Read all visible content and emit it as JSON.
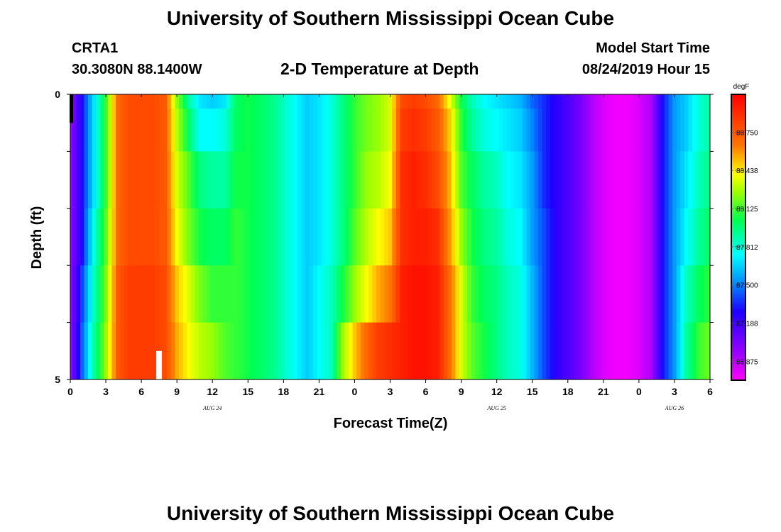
{
  "page": {
    "title_top": "University of Southern Mississippi Ocean Cube",
    "title_bottom": "University of Southern Mississippi Ocean Cube",
    "station_id": "CRTA1",
    "station_coords": "30.3080N 88.1400W",
    "model_label": "Model Start Time",
    "model_time": "08/24/2019 Hour 15"
  },
  "chart_data": {
    "type": "heatmap",
    "title": "2-D Temperature at Depth",
    "xlabel": "Forecast Time(Z)",
    "ylabel": "Depth (ft)",
    "units": "degF",
    "x_range_hours": [
      0,
      54
    ],
    "y_range_ft": [
      0,
      5
    ],
    "x_tick_labels": [
      "0",
      "3",
      "6",
      "9",
      "12",
      "15",
      "18",
      "21",
      "0",
      "3",
      "6",
      "9",
      "12",
      "15",
      "18",
      "21",
      "0",
      "3",
      "6"
    ],
    "y_tick_labels": [
      "0",
      "5"
    ],
    "date_labels": [
      {
        "text": "AUG 24",
        "hour": 12
      },
      {
        "text": "AUG 25",
        "hour": 36
      },
      {
        "text": "AUG 26",
        "hour": 51
      }
    ],
    "colorbar": {
      "min": 86.72,
      "max": 89.06,
      "tick_labels": [
        "88.750",
        "88.438",
        "88.125",
        "87.812",
        "87.500",
        "87.188",
        "86.875"
      ],
      "tick_values": [
        88.75,
        88.438,
        88.125,
        87.812,
        87.5,
        87.188,
        86.875
      ]
    },
    "depth_layers_ft": [
      0,
      0.5,
      1.5,
      2.5,
      3.5,
      4.5
    ],
    "temperature_degF_by_hour": [
      [
        86.95,
        86.95,
        86.95,
        86.95,
        86.95,
        86.95
      ],
      [
        87.3,
        87.3,
        87.3,
        87.3,
        87.4,
        87.45
      ],
      [
        87.7,
        87.7,
        87.7,
        87.8,
        87.85,
        87.9
      ],
      [
        88.1,
        88.1,
        88.1,
        88.15,
        88.2,
        88.25
      ],
      [
        88.7,
        88.7,
        88.7,
        88.7,
        88.75,
        88.75
      ],
      [
        88.8,
        88.8,
        88.8,
        88.8,
        88.85,
        88.85
      ],
      [
        88.8,
        88.8,
        88.8,
        88.8,
        88.85,
        88.85
      ],
      [
        88.8,
        88.8,
        88.8,
        88.8,
        88.85,
        88.85
      ],
      [
        88.75,
        88.75,
        88.75,
        88.75,
        88.8,
        88.8
      ],
      [
        88.25,
        88.3,
        88.35,
        88.4,
        88.5,
        88.55
      ],
      [
        87.9,
        88.0,
        88.15,
        88.2,
        88.35,
        88.4
      ],
      [
        87.7,
        87.75,
        87.95,
        88.05,
        88.2,
        88.3
      ],
      [
        87.65,
        87.75,
        87.9,
        88.0,
        88.1,
        88.25
      ],
      [
        87.7,
        87.8,
        87.9,
        88.0,
        88.1,
        88.15
      ],
      [
        88.0,
        88.0,
        88.05,
        88.1,
        88.1,
        88.1
      ],
      [
        88.05,
        88.05,
        88.05,
        88.05,
        88.05,
        88.05
      ],
      [
        88.0,
        88.0,
        88.0,
        88.0,
        88.0,
        88.0
      ],
      [
        87.95,
        87.95,
        87.95,
        87.95,
        87.95,
        87.95
      ],
      [
        87.85,
        87.85,
        87.85,
        87.85,
        87.85,
        87.85
      ],
      [
        87.75,
        87.75,
        87.75,
        87.75,
        87.75,
        87.75
      ],
      [
        87.65,
        87.65,
        87.65,
        87.65,
        87.65,
        87.65
      ],
      [
        87.7,
        87.7,
        87.7,
        87.7,
        87.75,
        87.75
      ],
      [
        87.8,
        87.8,
        87.8,
        87.8,
        87.85,
        87.85
      ],
      [
        87.95,
        87.95,
        87.95,
        87.95,
        88.05,
        88.25
      ],
      [
        88.1,
        88.1,
        88.1,
        88.15,
        88.25,
        88.5
      ],
      [
        88.2,
        88.2,
        88.25,
        88.3,
        88.4,
        88.7
      ],
      [
        88.25,
        88.25,
        88.3,
        88.4,
        88.55,
        88.85
      ],
      [
        88.35,
        88.35,
        88.4,
        88.5,
        88.65,
        88.9
      ],
      [
        88.8,
        88.85,
        88.9,
        88.9,
        88.95,
        88.95
      ],
      [
        88.85,
        88.9,
        88.95,
        88.95,
        89.0,
        89.0
      ],
      [
        88.8,
        88.85,
        88.9,
        88.95,
        89.0,
        89.0
      ],
      [
        88.7,
        88.75,
        88.8,
        88.9,
        88.95,
        88.95
      ],
      [
        88.4,
        88.5,
        88.55,
        88.6,
        88.7,
        88.7
      ],
      [
        88.05,
        88.1,
        88.15,
        88.25,
        88.35,
        88.35
      ],
      [
        87.85,
        87.9,
        88.0,
        88.05,
        88.1,
        88.15
      ],
      [
        87.75,
        87.8,
        87.9,
        87.95,
        88.0,
        88.05
      ],
      [
        87.7,
        87.75,
        87.85,
        87.9,
        87.95,
        87.95
      ],
      [
        87.65,
        87.7,
        87.75,
        87.8,
        87.85,
        87.85
      ],
      [
        87.6,
        87.65,
        87.7,
        87.75,
        87.8,
        87.8
      ],
      [
        87.45,
        87.5,
        87.55,
        87.55,
        87.6,
        87.6
      ],
      [
        87.35,
        87.35,
        87.35,
        87.4,
        87.4,
        87.4
      ],
      [
        87.25,
        87.25,
        87.25,
        87.25,
        87.25,
        87.25
      ],
      [
        87.15,
        87.15,
        87.15,
        87.15,
        87.15,
        87.15
      ],
      [
        87.05,
        87.05,
        87.05,
        87.05,
        87.05,
        87.05
      ],
      [
        86.9,
        86.9,
        86.9,
        86.9,
        86.9,
        86.9
      ],
      [
        86.8,
        86.8,
        86.8,
        86.8,
        86.8,
        86.8
      ],
      [
        86.75,
        86.75,
        86.75,
        86.75,
        86.75,
        86.75
      ],
      [
        86.75,
        86.75,
        86.75,
        86.75,
        86.75,
        86.75
      ],
      [
        86.8,
        86.8,
        86.8,
        86.8,
        86.8,
        86.8
      ],
      [
        86.9,
        86.9,
        86.9,
        86.9,
        86.9,
        86.9
      ],
      [
        87.3,
        87.3,
        87.3,
        87.3,
        87.3,
        87.3
      ],
      [
        87.55,
        87.55,
        87.55,
        87.55,
        87.55,
        87.55
      ],
      [
        87.65,
        87.65,
        87.7,
        87.75,
        87.85,
        87.9
      ],
      [
        87.8,
        87.8,
        87.85,
        87.9,
        88.0,
        88.1
      ],
      [
        87.9,
        87.9,
        87.95,
        88.0,
        88.1,
        88.2
      ]
    ],
    "marker_hour": 7.5,
    "marker_label": ""
  }
}
